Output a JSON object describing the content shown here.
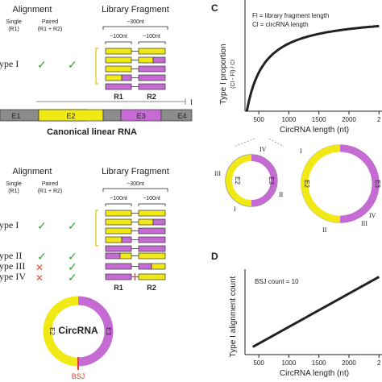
{
  "colors": {
    "yellow": "#f1e916",
    "purple": "#c56bd3",
    "gray": "#8c8c8c",
    "check": "#33a833",
    "cross": "#e0503a",
    "bsj": "#e53b2a"
  },
  "top_left": {
    "alignment_header": "Alignment",
    "library_header": "Library Fragment",
    "single_label": "Single",
    "single_sub": "(R1)",
    "paired_label": "Paired",
    "paired_sub": "(R1 + R2)",
    "frag_len": "~300nt",
    "read_len_1": "~100nt",
    "read_len_2": "~100nt",
    "type1_label": "ype I",
    "r1_label": "R1",
    "r2_label": "R2",
    "linear_title": "Canonical linear RNA",
    "exons": [
      "E1",
      "E2",
      "E3",
      "E4"
    ],
    "roman_marker": "I"
  },
  "bottom_left": {
    "alignment_header": "Alignment",
    "library_header": "Library Fragment",
    "single_label": "Single",
    "single_sub": "(R1)",
    "paired_label": "Paired",
    "paired_sub": "(R1 + R2)",
    "frag_len": "~300nt",
    "read_len_1": "~100nt",
    "read_len_2": "~100nt",
    "types": [
      "ype I",
      "ype II",
      "ype III",
      "ype IV"
    ],
    "r1_label": "R1",
    "r2_label": "R2",
    "circ_label": "CircRNA",
    "circ_e2": "E2",
    "circ_e3": "E3",
    "bsj_label": "BSJ"
  },
  "panel_c": {
    "letter": "C",
    "legend_line1": "Fl = library fragment length",
    "legend_line2": "Cl = circRNA length",
    "ylabel": "Type I  proportion",
    "ylabel_sub": "(Cl - Fl) / Cl",
    "xlabel": "CircRNA length (nt)",
    "xticks": [
      "500",
      "1000",
      "1500",
      "2000",
      "2"
    ],
    "small_circle": {
      "e2": "E2",
      "e3": "E3",
      "labels": [
        "IV",
        "III",
        "I",
        "II"
      ]
    },
    "large_circle": {
      "e2": "E2",
      "e3": "E3",
      "labels": [
        "I",
        "IV",
        "III",
        "II"
      ]
    }
  },
  "panel_d": {
    "letter": "D",
    "annotation": "BSJ count = 10",
    "ylabel": "Type I  alignment count",
    "xlabel": "CircRNA length (nt)",
    "xticks": [
      "500",
      "1000",
      "1500",
      "2000",
      "2"
    ]
  },
  "chart_data": [
    {
      "type": "line",
      "title": "",
      "xlabel": "CircRNA length (nt)",
      "ylabel": "Type I proportion (Cl - Fl) / Cl",
      "x": [
        300,
        350,
        400,
        500,
        600,
        800,
        1000,
        1250,
        1500,
        2000,
        2500
      ],
      "series": [
        {
          "values": [
            0.0,
            0.14,
            0.25,
            0.4,
            0.5,
            0.625,
            0.7,
            0.76,
            0.8,
            0.85,
            0.88
          ]
        }
      ],
      "xlim": [
        270,
        2550
      ],
      "ylim": [
        0,
        0.9
      ],
      "xticks": [
        500,
        1000,
        1500,
        2000
      ]
    },
    {
      "type": "line",
      "title": "",
      "xlabel": "CircRNA length (nt)",
      "ylabel": "Type I alignment count",
      "annotation": "BSJ count = 10",
      "x": [
        400,
        2500
      ],
      "series": [
        {
          "values": [
            1,
            10
          ]
        }
      ],
      "xlim": [
        270,
        2550
      ],
      "ylim": [
        0,
        11
      ],
      "xticks": [
        500,
        1000,
        1500,
        2000
      ]
    }
  ]
}
